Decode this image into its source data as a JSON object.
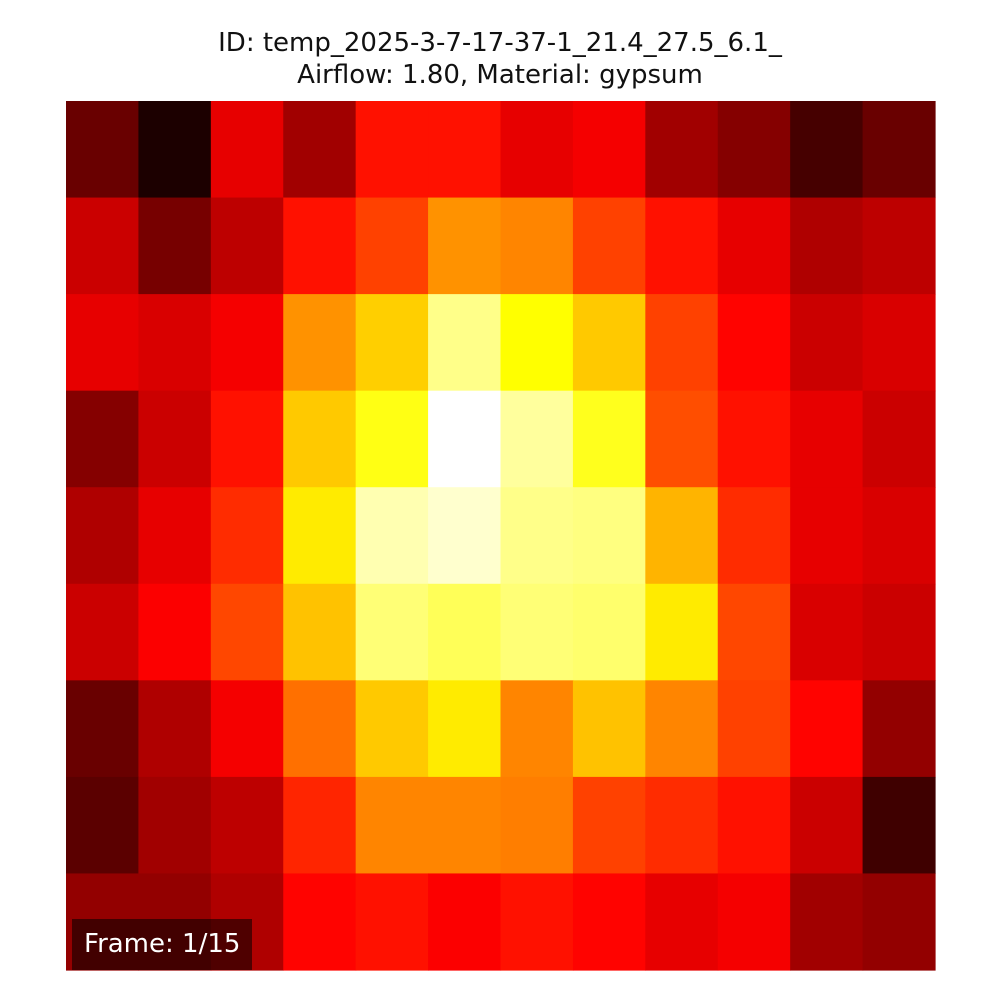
{
  "chart_data": {
    "type": "heatmap",
    "title_line_1": "ID: temp_2025-3-7-17-37-1_21.4_27.5_6.1_",
    "title_line_2": "Airflow: 1.80, Material: gypsum",
    "colormap": "hot",
    "value_range": [
      0,
      1
    ],
    "rows": 9,
    "cols": 12,
    "values": [
      [
        0.15,
        0.04,
        0.33,
        0.23,
        0.39,
        0.39,
        0.33,
        0.35,
        0.23,
        0.19,
        0.1,
        0.15
      ],
      [
        0.29,
        0.17,
        0.27,
        0.39,
        0.46,
        0.58,
        0.56,
        0.46,
        0.39,
        0.33,
        0.25,
        0.27
      ],
      [
        0.33,
        0.31,
        0.35,
        0.58,
        0.67,
        0.88,
        0.74,
        0.66,
        0.46,
        0.37,
        0.29,
        0.31
      ],
      [
        0.19,
        0.29,
        0.39,
        0.66,
        0.76,
        1.0,
        0.9,
        0.77,
        0.48,
        0.39,
        0.33,
        0.29
      ],
      [
        0.25,
        0.33,
        0.43,
        0.71,
        0.92,
        0.95,
        0.88,
        0.87,
        0.63,
        0.43,
        0.33,
        0.31
      ],
      [
        0.29,
        0.36,
        0.47,
        0.65,
        0.86,
        0.83,
        0.86,
        0.85,
        0.71,
        0.47,
        0.31,
        0.29
      ],
      [
        0.15,
        0.25,
        0.35,
        0.53,
        0.66,
        0.71,
        0.56,
        0.65,
        0.56,
        0.46,
        0.37,
        0.21
      ],
      [
        0.13,
        0.23,
        0.27,
        0.42,
        0.56,
        0.56,
        0.55,
        0.46,
        0.43,
        0.39,
        0.29,
        0.09
      ],
      [
        0.21,
        0.21,
        0.25,
        0.37,
        0.39,
        0.36,
        0.39,
        0.37,
        0.33,
        0.35,
        0.23,
        0.21
      ]
    ]
  },
  "overlay": {
    "frame_label": "Frame: 1/15"
  }
}
